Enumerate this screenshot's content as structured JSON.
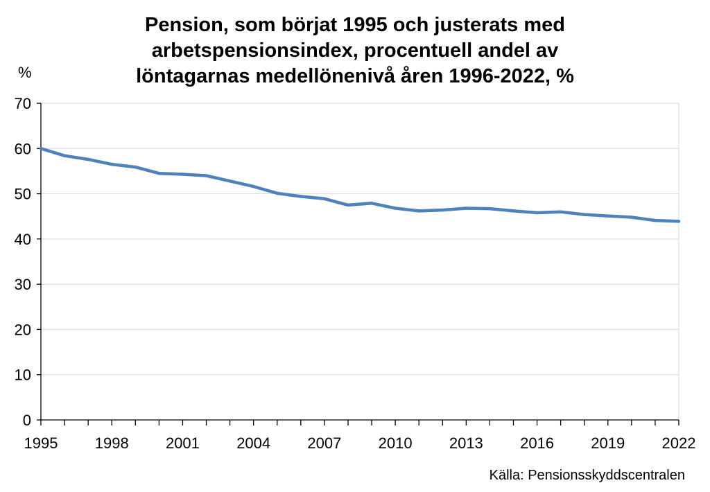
{
  "chart_data": {
    "type": "line",
    "title_lines": [
      "Pension, som börjat 1995 och justerats med",
      "arbetspensionsindex, procentuell andel av",
      "löntagarnas medellönenivå åren 1996-2022, %"
    ],
    "ylabel": "%",
    "xlabel": "",
    "source": "Källa: Pensionsskyddscentralen",
    "xlim": [
      1995,
      2022
    ],
    "ylim": [
      0,
      70
    ],
    "y_ticks": [
      "0",
      "10",
      "20",
      "30",
      "40",
      "50",
      "60",
      "70"
    ],
    "x_tick_labels": [
      "1995",
      "1998",
      "2001",
      "2004",
      "2007",
      "2010",
      "2013",
      "2016",
      "2019",
      "2022"
    ],
    "grid": "horizontal",
    "line_color": "#4F81BD",
    "series": [
      {
        "x": [
          1995,
          1996,
          1997,
          1998,
          1999,
          2000,
          2001,
          2002,
          2003,
          2004,
          2005,
          2006,
          2007,
          2008,
          2009,
          2010,
          2011,
          2012,
          2013,
          2014,
          2015,
          2016,
          2017,
          2018,
          2019,
          2020,
          2021,
          2022
        ],
        "values": [
          60.0,
          58.4,
          57.6,
          56.5,
          55.9,
          54.5,
          54.3,
          54.0,
          52.8,
          51.6,
          50.1,
          49.4,
          48.9,
          47.5,
          47.9,
          46.8,
          46.2,
          46.4,
          46.8,
          46.7,
          46.2,
          45.8,
          46.0,
          45.4,
          45.1,
          44.8,
          44.1,
          43.9
        ]
      }
    ]
  }
}
